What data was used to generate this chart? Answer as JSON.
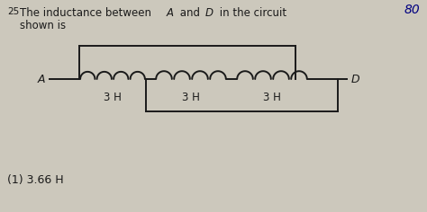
{
  "bg_color": "#ccc8bc",
  "line_color": "#1a1a1a",
  "fig_width": 4.74,
  "fig_height": 2.36,
  "dpi": 100,
  "corner_text": "80",
  "question_num": "25",
  "q_text1": " The inductance between ",
  "q_A": "A",
  "q_text2": " and ",
  "q_D": "D",
  "q_text3": " in the circuit",
  "q_text4": "shown is",
  "answer": "(1) 3.66 H",
  "label_A": "A",
  "label_D": "D",
  "ind_label": "3 H"
}
